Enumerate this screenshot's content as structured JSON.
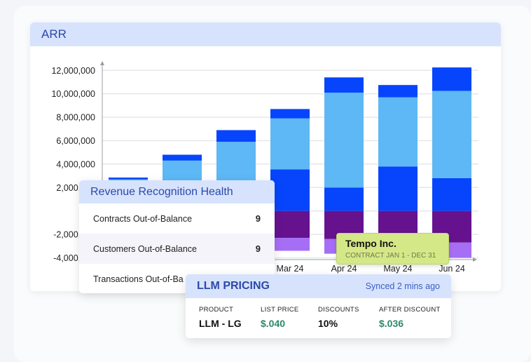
{
  "arr_card": {
    "title": "ARR"
  },
  "chart_data": {
    "type": "bar",
    "stacked": true,
    "categories": [
      "",
      "",
      "",
      "Mar 24",
      "Apr 24",
      "May 24",
      "Jun 24"
    ],
    "series": [
      {
        "color": "#0645fb",
        "values": [
          1000000,
          1500000,
          2000000,
          3550000,
          2000000,
          3800000,
          2800000
        ]
      },
      {
        "color": "#5db8f5",
        "values": [
          1700000,
          2800000,
          3900000,
          4350000,
          8100000,
          5900000,
          7450000
        ]
      },
      {
        "color": "#0645fb",
        "values": [
          150000,
          500000,
          1000000,
          800000,
          1300000,
          1050000,
          2000000
        ]
      },
      {
        "color": "#66128f",
        "values": [
          -1000000,
          -1500000,
          -1800000,
          -2300000,
          -2400000,
          -2500000,
          -2700000
        ]
      },
      {
        "color": "#a66ef5",
        "values": [
          -500000,
          -800000,
          -1000000,
          -1100000,
          -1250000,
          -1100000,
          -1300000
        ]
      }
    ],
    "yticks": [
      "12,000,000",
      "10,000,000",
      "8,000,000",
      "6,000,000",
      "4,000,000",
      "2,000,000",
      "-2,000,000",
      "-4,000,000"
    ],
    "ytick_values": [
      12000000,
      10000000,
      8000000,
      6000000,
      4000000,
      2000000,
      -2000000,
      -4000000
    ],
    "ylim": [
      -4200000,
      12800000
    ],
    "grid": true
  },
  "rev_health": {
    "title": "Revenue Recognition Health",
    "rows": [
      {
        "label": "Contracts Out-of-Balance",
        "value": "9"
      },
      {
        "label": "Customers Out-of-Balance",
        "value": "9"
      },
      {
        "label": "Transactions Out-of-Ba",
        "value": ""
      }
    ]
  },
  "tooltip": {
    "name": "Tempo Inc.",
    "detail": "CONTRACT JAN 1 - DEC 31"
  },
  "llm_pricing": {
    "title": "LLM PRICING",
    "sync_status": "Synced 2 mins ago",
    "columns": [
      {
        "label": "PRODUCT",
        "value": "LLM - LG"
      },
      {
        "label": "LIST PRICE",
        "value": "$.040"
      },
      {
        "label": "DISCOUNTS",
        "value": "10%"
      },
      {
        "label": "AFTER DISCOUNT",
        "value": "$.036"
      }
    ]
  }
}
